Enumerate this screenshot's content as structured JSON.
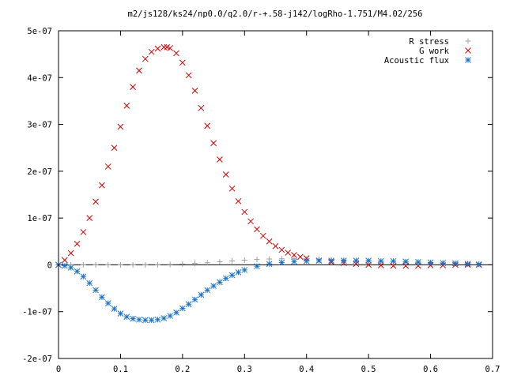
{
  "chart_data": {
    "type": "scatter",
    "title": "m2/js128/ks24/np0.0/q2.0/r-+.58-j142/logRho-1.751/M4.02/256",
    "xlabel": "",
    "ylabel": "",
    "xlim": [
      0,
      0.7
    ],
    "ylim": [
      -2e-07,
      5e-07
    ],
    "grid": false,
    "legend_position": "top-right",
    "x_ticks": [
      {
        "value": 0,
        "label": "0"
      },
      {
        "value": 0.1,
        "label": "0.1"
      },
      {
        "value": 0.2,
        "label": "0.2"
      },
      {
        "value": 0.3,
        "label": "0.3"
      },
      {
        "value": 0.4,
        "label": "0.4"
      },
      {
        "value": 0.5,
        "label": "0.5"
      },
      {
        "value": 0.6,
        "label": "0.6"
      },
      {
        "value": 0.7,
        "label": "0.7"
      }
    ],
    "y_ticks": [
      {
        "value": -2e-07,
        "label": "-2e-07"
      },
      {
        "value": -1e-07,
        "label": "-1e-07"
      },
      {
        "value": 0,
        "label": "0"
      },
      {
        "value": 1e-07,
        "label": "1e-07"
      },
      {
        "value": 2e-07,
        "label": "2e-07"
      },
      {
        "value": 3e-07,
        "label": "3e-07"
      },
      {
        "value": 4e-07,
        "label": "4e-07"
      },
      {
        "value": 5e-07,
        "label": "5e-07"
      }
    ],
    "series": [
      {
        "name": "R stress",
        "marker": "plus",
        "color": "#a0a0a0",
        "x": [
          0.0,
          0.02,
          0.04,
          0.06,
          0.08,
          0.1,
          0.12,
          0.14,
          0.16,
          0.18,
          0.2,
          0.22,
          0.24,
          0.26,
          0.28,
          0.3,
          0.32,
          0.34,
          0.36,
          0.38,
          0.4,
          0.42,
          0.44,
          0.46,
          0.48,
          0.5,
          0.52,
          0.54,
          0.56,
          0.58,
          0.6,
          0.62,
          0.64,
          0.66,
          0.678
        ],
        "y": [
          0,
          0,
          0,
          0,
          0,
          0,
          0,
          0,
          2e-10,
          8e-10,
          1.8e-09,
          3e-09,
          4.5e-09,
          6.5e-09,
          8.5e-09,
          1e-08,
          1.15e-08,
          1.25e-08,
          1.3e-08,
          1.3e-08,
          1.25e-08,
          1.2e-08,
          1.1e-08,
          1e-08,
          9e-09,
          8e-09,
          7e-09,
          6e-09,
          5e-09,
          4.5e-09,
          4e-09,
          3.5e-09,
          3e-09,
          2.5e-09,
          2e-09
        ]
      },
      {
        "name": "G work",
        "marker": "cross",
        "color": "#cc0000",
        "x": [
          0.0,
          0.01,
          0.02,
          0.03,
          0.04,
          0.05,
          0.06,
          0.07,
          0.08,
          0.09,
          0.1,
          0.11,
          0.12,
          0.13,
          0.14,
          0.15,
          0.16,
          0.17,
          0.175,
          0.18,
          0.19,
          0.2,
          0.21,
          0.22,
          0.23,
          0.24,
          0.25,
          0.26,
          0.27,
          0.28,
          0.29,
          0.3,
          0.31,
          0.32,
          0.33,
          0.34,
          0.35,
          0.36,
          0.37,
          0.38,
          0.39,
          0.4,
          0.42,
          0.44,
          0.46,
          0.48,
          0.5,
          0.52,
          0.54,
          0.56,
          0.58,
          0.6,
          0.62,
          0.64,
          0.66,
          0.678
        ],
        "y": [
          0,
          1e-08,
          2.5e-08,
          4.5e-08,
          7e-08,
          1e-07,
          1.35e-07,
          1.7e-07,
          2.1e-07,
          2.5e-07,
          2.95e-07,
          3.4e-07,
          3.8e-07,
          4.15e-07,
          4.4e-07,
          4.55e-07,
          4.62e-07,
          4.65e-07,
          4.65e-07,
          4.63e-07,
          4.52e-07,
          4.32e-07,
          4.05e-07,
          3.72e-07,
          3.35e-07,
          2.97e-07,
          2.6e-07,
          2.25e-07,
          1.93e-07,
          1.63e-07,
          1.36e-07,
          1.13e-07,
          9.3e-08,
          7.6e-08,
          6.2e-08,
          5e-08,
          4e-08,
          3.2e-08,
          2.6e-08,
          2.1e-08,
          1.7e-08,
          1.4e-08,
          9e-09,
          6e-09,
          4e-09,
          2e-09,
          0,
          -1e-09,
          -2e-09,
          -2e-09,
          -2e-09,
          -1e-09,
          -1e-09,
          0,
          0,
          0
        ]
      },
      {
        "name": "Acoustic flux",
        "marker": "star",
        "color": "#1a73c8",
        "x": [
          0.0,
          0.01,
          0.02,
          0.03,
          0.04,
          0.05,
          0.06,
          0.07,
          0.08,
          0.09,
          0.1,
          0.11,
          0.12,
          0.13,
          0.14,
          0.15,
          0.16,
          0.17,
          0.18,
          0.19,
          0.2,
          0.21,
          0.22,
          0.23,
          0.24,
          0.25,
          0.26,
          0.27,
          0.28,
          0.29,
          0.3,
          0.32,
          0.34,
          0.36,
          0.38,
          0.4,
          0.42,
          0.44,
          0.46,
          0.48,
          0.5,
          0.52,
          0.54,
          0.56,
          0.58,
          0.6,
          0.62,
          0.64,
          0.66,
          0.678
        ],
        "y": [
          0,
          -2e-09,
          -6e-09,
          -1.4e-08,
          -2.5e-08,
          -3.9e-08,
          -5.4e-08,
          -6.9e-08,
          -8.2e-08,
          -9.4e-08,
          -1.04e-07,
          -1.11e-07,
          -1.15e-07,
          -1.17e-07,
          -1.18e-07,
          -1.18e-07,
          -1.17e-07,
          -1.14e-07,
          -1.09e-07,
          -1.02e-07,
          -9.3e-08,
          -8.4e-08,
          -7.4e-08,
          -6.4e-08,
          -5.4e-08,
          -4.5e-08,
          -3.7e-08,
          -2.9e-08,
          -2.2e-08,
          -1.6e-08,
          -1.1e-08,
          -3e-09,
          2e-09,
          5e-09,
          7e-09,
          8e-09,
          9e-09,
          9e-09,
          9e-09,
          9e-09,
          9e-09,
          8e-09,
          8e-09,
          7e-09,
          6e-09,
          5e-09,
          4e-09,
          3e-09,
          2e-09,
          1e-09
        ]
      }
    ]
  }
}
